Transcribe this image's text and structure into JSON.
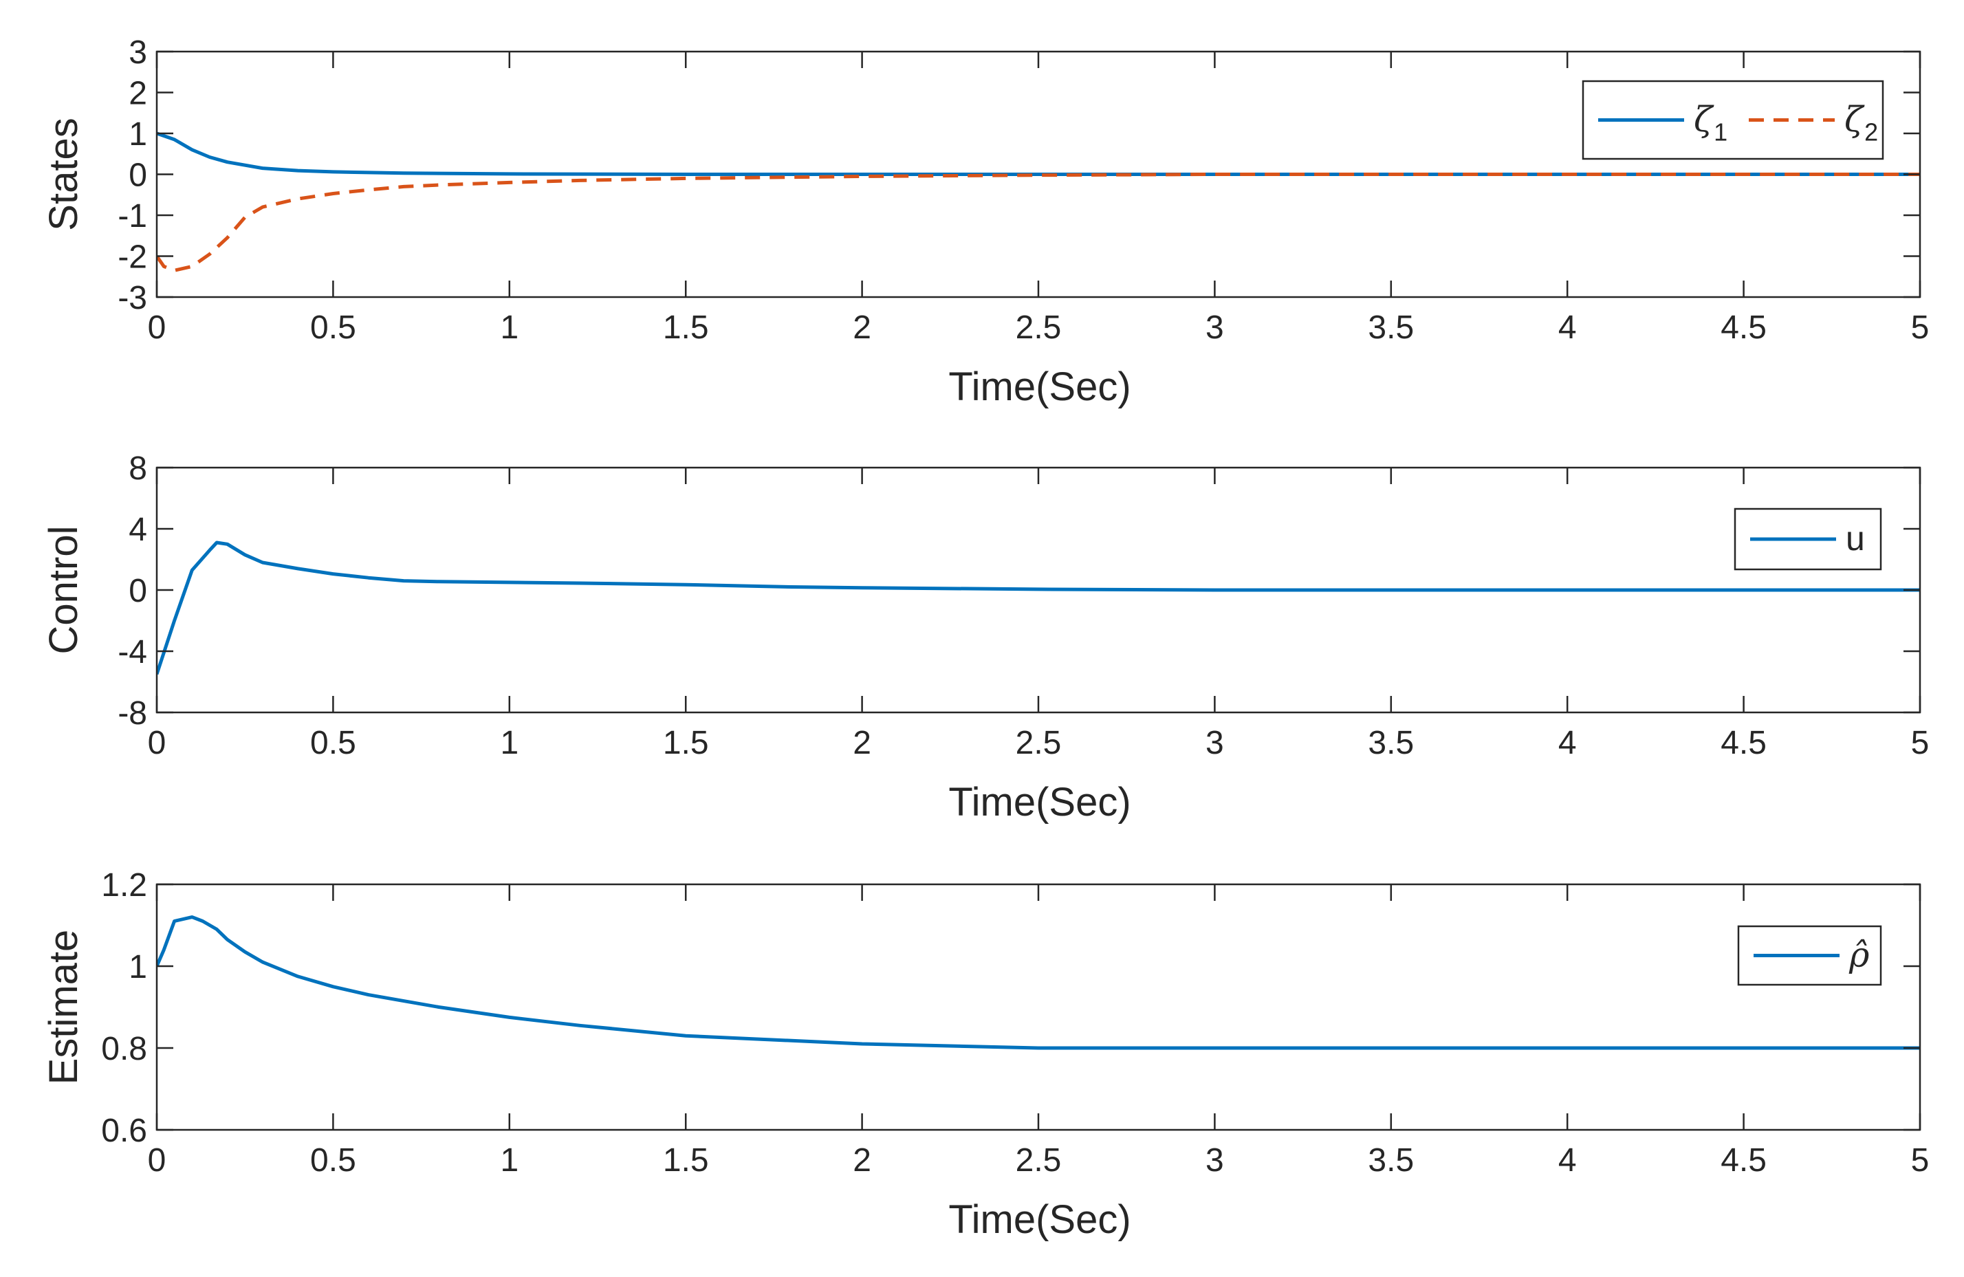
{
  "colors": {
    "blue": "#0072BD",
    "orange": "#D95319",
    "axis": "#262626"
  },
  "chart_data": [
    {
      "type": "line",
      "xlabel": "Time(Sec)",
      "ylabel": "States",
      "xlim": [
        0,
        5
      ],
      "ylim": [
        -3,
        3
      ],
      "xticks": [
        0,
        0.5,
        1,
        1.5,
        2,
        2.5,
        3,
        3.5,
        4,
        4.5,
        5
      ],
      "xtick_labels": [
        "0",
        "0.5",
        "1",
        "1.5",
        "2",
        "2.5",
        "3",
        "3.5",
        "4",
        "4.5",
        "5"
      ],
      "yticks": [
        -3,
        -2,
        -1,
        0,
        1,
        2,
        3
      ],
      "ytick_labels": [
        "-3",
        "-2",
        "-1",
        "0",
        "1",
        "2",
        "3"
      ],
      "grid": false,
      "legend": "top-right",
      "series": [
        {
          "name": "ζ1",
          "symbol": "ζ",
          "subscript": "1",
          "color": "#0072BD",
          "style": "solid",
          "x": [
            0,
            0.05,
            0.1,
            0.15,
            0.2,
            0.3,
            0.4,
            0.5,
            0.7,
            1.0,
            1.5,
            2.0,
            3.0,
            4.0,
            5.0
          ],
          "y": [
            1.0,
            0.85,
            0.6,
            0.42,
            0.3,
            0.15,
            0.09,
            0.06,
            0.03,
            0.01,
            0.0,
            0.0,
            0.0,
            0.0,
            0.0
          ]
        },
        {
          "name": "ζ2",
          "symbol": "ζ",
          "subscript": "2",
          "color": "#D95319",
          "style": "dashed",
          "x": [
            0,
            0.02,
            0.05,
            0.1,
            0.15,
            0.2,
            0.25,
            0.3,
            0.4,
            0.5,
            0.6,
            0.7,
            0.8,
            1.0,
            1.2,
            1.5,
            2.0,
            2.5,
            3.0,
            4.0,
            5.0
          ],
          "y": [
            -2.0,
            -2.25,
            -2.35,
            -2.25,
            -1.95,
            -1.55,
            -1.05,
            -0.8,
            -0.6,
            -0.47,
            -0.38,
            -0.3,
            -0.26,
            -0.2,
            -0.15,
            -0.1,
            -0.05,
            -0.02,
            0.0,
            0.0,
            0.0
          ]
        }
      ]
    },
    {
      "type": "line",
      "xlabel": "Time(Sec)",
      "ylabel": "Control",
      "xlim": [
        0,
        5
      ],
      "ylim": [
        -8,
        8
      ],
      "xticks": [
        0,
        0.5,
        1,
        1.5,
        2,
        2.5,
        3,
        3.5,
        4,
        4.5,
        5
      ],
      "xtick_labels": [
        "0",
        "0.5",
        "1",
        "1.5",
        "2",
        "2.5",
        "3",
        "3.5",
        "4",
        "4.5",
        "5"
      ],
      "yticks": [
        -8,
        -4,
        0,
        4,
        8
      ],
      "ytick_labels": [
        "-8",
        "-4",
        "0",
        "4",
        "8"
      ],
      "grid": false,
      "legend": "top-right",
      "series": [
        {
          "name": "u",
          "symbol": "u",
          "subscript": "",
          "color": "#0072BD",
          "style": "solid",
          "x": [
            0,
            0.05,
            0.1,
            0.15,
            0.17,
            0.2,
            0.25,
            0.3,
            0.4,
            0.5,
            0.6,
            0.7,
            0.8,
            1.0,
            1.2,
            1.5,
            1.8,
            2.0,
            2.5,
            3.0,
            3.5,
            4.0,
            5.0
          ],
          "y": [
            -5.5,
            -2.0,
            1.3,
            2.6,
            3.1,
            3.0,
            2.3,
            1.8,
            1.4,
            1.05,
            0.8,
            0.6,
            0.55,
            0.5,
            0.45,
            0.35,
            0.2,
            0.15,
            0.05,
            0.0,
            0.0,
            0.0,
            0.0
          ]
        }
      ]
    },
    {
      "type": "line",
      "xlabel": "Time(Sec)",
      "ylabel": "Estimate",
      "xlim": [
        0,
        5
      ],
      "ylim": [
        0.6,
        1.2
      ],
      "xticks": [
        0,
        0.5,
        1,
        1.5,
        2,
        2.5,
        3,
        3.5,
        4,
        4.5,
        5
      ],
      "xtick_labels": [
        "0",
        "0.5",
        "1",
        "1.5",
        "2",
        "2.5",
        "3",
        "3.5",
        "4",
        "4.5",
        "5"
      ],
      "yticks": [
        0.6,
        0.8,
        1,
        1.2
      ],
      "ytick_labels": [
        "0.6",
        "0.8",
        "1",
        "1.2"
      ],
      "grid": false,
      "legend": "top-right",
      "series": [
        {
          "name": "ρ̂",
          "symbol": "ρ̂",
          "subscript": "",
          "color": "#0072BD",
          "style": "solid",
          "x": [
            0,
            0.02,
            0.05,
            0.1,
            0.13,
            0.17,
            0.2,
            0.25,
            0.3,
            0.4,
            0.5,
            0.6,
            0.7,
            0.8,
            1.0,
            1.2,
            1.5,
            2.0,
            2.5,
            3.0,
            3.5,
            4.0,
            5.0
          ],
          "y": [
            1.0,
            1.04,
            1.11,
            1.12,
            1.11,
            1.09,
            1.065,
            1.035,
            1.01,
            0.975,
            0.95,
            0.93,
            0.915,
            0.9,
            0.875,
            0.855,
            0.83,
            0.81,
            0.8,
            0.8,
            0.8,
            0.8,
            0.8
          ]
        }
      ]
    }
  ]
}
